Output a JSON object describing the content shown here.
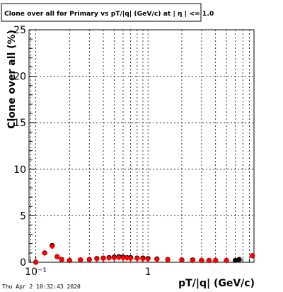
{
  "chart_data": {
    "type": "scatter",
    "title": "Clone  over all for Primary vs pT/|q| (GeV/c) at |  η | <= 1.0",
    "xlabel": "pT/|q| (GeV/c)",
    "ylabel": "Clone  over all (%)",
    "x_scale": "log",
    "xlim": [
      0.087,
      8.8
    ],
    "ylim": [
      0,
      25
    ],
    "x_ticks_labeled": [
      {
        "value": 0.1,
        "label": "10⁻¹"
      },
      {
        "value": 1,
        "label": "1"
      }
    ],
    "y_ticks": [
      0,
      5,
      10,
      15,
      20,
      25
    ],
    "grid": true,
    "series": [
      {
        "marker": "circle",
        "color": "#000000",
        "x": [
          0.1,
          0.12,
          0.14,
          0.155,
          0.17,
          0.2,
          0.25,
          0.3,
          0.35,
          0.4,
          0.45,
          0.5,
          0.55,
          0.6,
          0.65,
          0.7,
          0.8,
          0.9,
          1.0,
          1.2,
          1.5,
          2.0,
          2.5,
          3.0,
          3.5,
          4.0,
          5.0,
          6.0,
          6.5,
          8.5
        ],
        "y": [
          0.0,
          1.0,
          1.8,
          0.6,
          0.3,
          0.2,
          0.25,
          0.3,
          0.4,
          0.45,
          0.5,
          0.55,
          0.6,
          0.55,
          0.5,
          0.5,
          0.45,
          0.45,
          0.4,
          0.35,
          0.3,
          0.25,
          0.25,
          0.2,
          0.2,
          0.2,
          0.2,
          0.2,
          0.3,
          0.7
        ]
      },
      {
        "marker": "circle",
        "color": "#ff0000",
        "x": [
          0.1,
          0.12,
          0.14,
          0.155,
          0.17,
          0.2,
          0.25,
          0.3,
          0.35,
          0.4,
          0.45,
          0.5,
          0.55,
          0.6,
          0.65,
          0.7,
          0.8,
          0.9,
          1.0,
          1.2,
          1.5,
          2.0,
          2.5,
          3.0,
          3.5,
          4.0,
          5.0,
          8.5
        ],
        "y": [
          0.0,
          1.0,
          1.7,
          0.6,
          0.3,
          0.2,
          0.25,
          0.3,
          0.35,
          0.4,
          0.45,
          0.45,
          0.5,
          0.45,
          0.45,
          0.4,
          0.4,
          0.35,
          0.35,
          0.3,
          0.3,
          0.25,
          0.2,
          0.2,
          0.2,
          0.2,
          0.2,
          0.7
        ]
      }
    ]
  },
  "footer": {
    "timestamp": "Thu Apr  2 10:32:43 2020"
  }
}
